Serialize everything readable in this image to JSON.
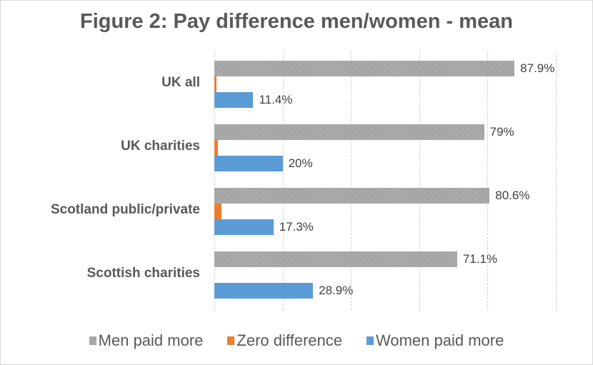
{
  "chart_data": {
    "type": "bar",
    "orientation": "horizontal",
    "title": "Figure 2: Pay difference men/women - mean",
    "xlabel": "",
    "ylabel": "",
    "xlim": [
      0,
      100
    ],
    "grid": true,
    "legend_position": "bottom",
    "categories": [
      "UK all",
      "UK charities",
      "Scotland public/private",
      "Scottish charities"
    ],
    "series": [
      {
        "name": "Men paid more",
        "color": "#a5a5a5",
        "values": [
          87.9,
          79,
          80.6,
          71.1
        ],
        "labels": [
          "87.9%",
          "79%",
          "80.6%",
          "71.1%"
        ]
      },
      {
        "name": "Zero difference",
        "color": "#ed7d31",
        "values": [
          0.7,
          1,
          2.1,
          0
        ],
        "labels": [
          "",
          "",
          "",
          ""
        ]
      },
      {
        "name": "Women paid more",
        "color": "#5b9bd5",
        "values": [
          11.4,
          20,
          17.3,
          28.9
        ],
        "labels": [
          "11.4%",
          "20%",
          "17.3%",
          "28.9%"
        ]
      }
    ]
  },
  "legend": {
    "items": [
      {
        "label": "Men paid more",
        "color": "#a5a5a5"
      },
      {
        "label": "Zero difference",
        "color": "#ed7d31"
      },
      {
        "label": "Women paid more",
        "color": "#5b9bd5"
      }
    ]
  }
}
